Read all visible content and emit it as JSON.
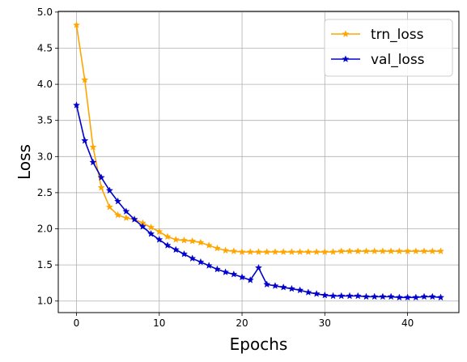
{
  "chart_data": {
    "type": "line",
    "title": "",
    "xlabel": "Epochs",
    "ylabel": "Loss",
    "xlim": [
      -2.2,
      46.2
    ],
    "ylim": [
      0.84,
      5.01
    ],
    "xticks": [
      0,
      10,
      20,
      30,
      40
    ],
    "yticks": [
      1.0,
      1.5,
      2.0,
      2.5,
      3.0,
      3.5,
      4.0,
      4.5,
      5.0
    ],
    "xtick_labels": [
      "0",
      "10",
      "20",
      "30",
      "40"
    ],
    "ytick_labels": [
      "1.0",
      "1.5",
      "2.0",
      "2.5",
      "3.0",
      "3.5",
      "4.0",
      "4.5",
      "5.0"
    ],
    "grid": true,
    "legend": "top-right",
    "x": [
      0,
      1,
      2,
      3,
      4,
      5,
      6,
      7,
      8,
      9,
      10,
      11,
      12,
      13,
      14,
      15,
      16,
      17,
      18,
      19,
      20,
      21,
      22,
      23,
      24,
      25,
      26,
      27,
      28,
      29,
      30,
      31,
      32,
      33,
      34,
      35,
      36,
      37,
      38,
      39,
      40,
      41,
      42,
      43,
      44
    ],
    "series": [
      {
        "name": "trn_loss",
        "color": "#ffa500",
        "marker": "star",
        "values": [
          4.82,
          4.06,
          3.13,
          2.57,
          2.3,
          2.19,
          2.15,
          2.13,
          2.08,
          2.02,
          1.96,
          1.89,
          1.85,
          1.84,
          1.83,
          1.81,
          1.77,
          1.73,
          1.7,
          1.69,
          1.68,
          1.68,
          1.68,
          1.68,
          1.68,
          1.68,
          1.68,
          1.68,
          1.68,
          1.68,
          1.68,
          1.68,
          1.69,
          1.69,
          1.69,
          1.69,
          1.69,
          1.69,
          1.69,
          1.69,
          1.69,
          1.69,
          1.69,
          1.69,
          1.69
        ]
      },
      {
        "name": "val_loss",
        "color": "#0000cd",
        "marker": "star",
        "values": [
          3.71,
          3.22,
          2.92,
          2.71,
          2.53,
          2.38,
          2.24,
          2.13,
          2.03,
          1.93,
          1.85,
          1.77,
          1.71,
          1.65,
          1.59,
          1.54,
          1.49,
          1.44,
          1.4,
          1.37,
          1.33,
          1.29,
          1.46,
          1.23,
          1.21,
          1.19,
          1.17,
          1.15,
          1.12,
          1.1,
          1.08,
          1.07,
          1.07,
          1.07,
          1.07,
          1.06,
          1.06,
          1.06,
          1.06,
          1.05,
          1.05,
          1.05,
          1.06,
          1.06,
          1.05
        ]
      }
    ]
  }
}
